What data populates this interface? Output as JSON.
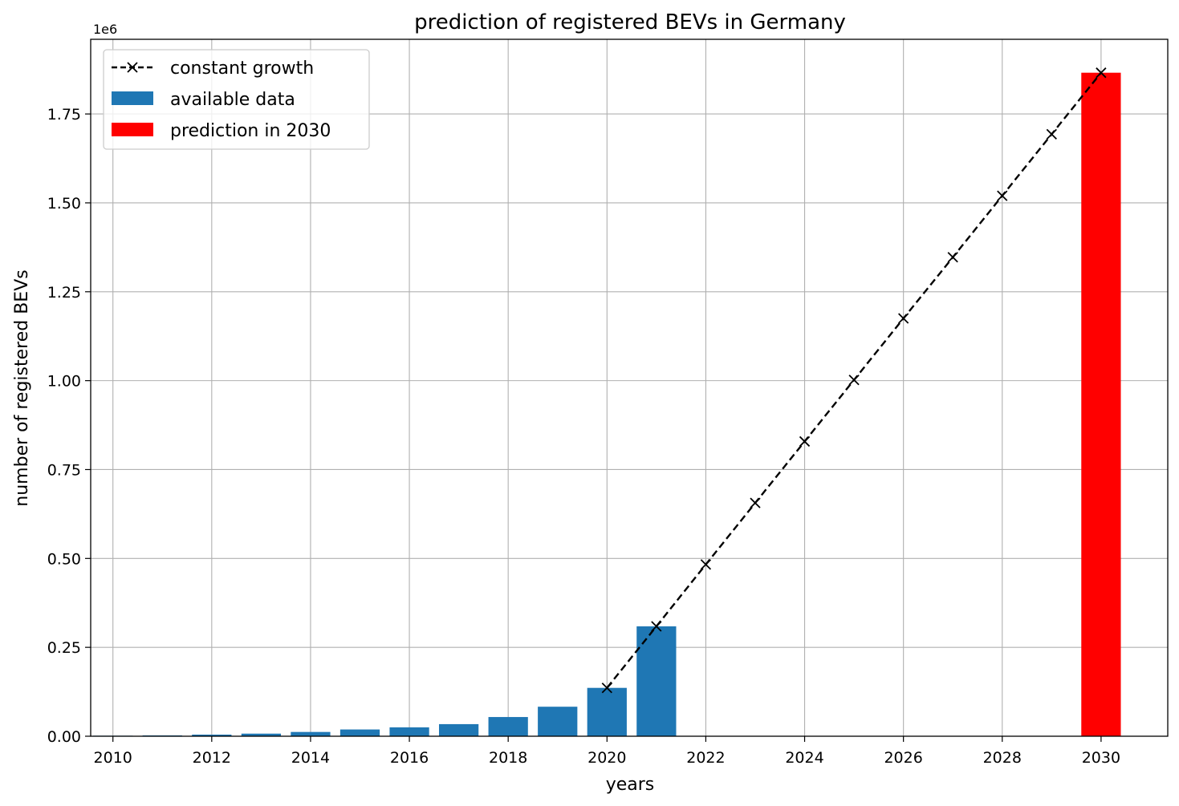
{
  "chart_data": {
    "type": "bar",
    "title": "prediction of registered BEVs in Germany",
    "xlabel": "years",
    "ylabel": "number of registered BEVs",
    "y_offset_text": "1e6",
    "xlim": [
      2009.55,
      2031.35
    ],
    "ylim": [
      0,
      1.96
    ],
    "x_ticks": [
      2010,
      2012,
      2014,
      2016,
      2018,
      2020,
      2022,
      2024,
      2026,
      2028,
      2030
    ],
    "x_tick_labels": [
      "2010",
      "2012",
      "2014",
      "2016",
      "2018",
      "2020",
      "2022",
      "2024",
      "2026",
      "2028",
      "2030"
    ],
    "y_ticks": [
      0,
      0.25,
      0.5,
      0.75,
      1.0,
      1.25,
      1.5,
      1.75
    ],
    "y_tick_labels": [
      "0.00",
      "0.25",
      "0.50",
      "0.75",
      "1.00",
      "1.25",
      "1.50",
      "1.75"
    ],
    "grid": true,
    "legend_position": "top-left",
    "series": [
      {
        "name": "constant growth",
        "kind": "line",
        "style": "dashed",
        "marker": "x",
        "color": "#000000",
        "x": [
          2020,
          2021,
          2022,
          2023,
          2024,
          2025,
          2026,
          2027,
          2028,
          2029,
          2030
        ],
        "values": [
          0.136,
          0.309,
          0.483,
          0.656,
          0.829,
          1.002,
          1.175,
          1.347,
          1.52,
          1.693,
          1.866
        ]
      },
      {
        "name": "available data",
        "kind": "bar",
        "color": "#1f77b4",
        "x": [
          2010,
          2011,
          2012,
          2013,
          2014,
          2015,
          2016,
          2017,
          2018,
          2019,
          2020,
          2021
        ],
        "values": [
          0.0015,
          0.0023,
          0.0045,
          0.0073,
          0.012,
          0.019,
          0.025,
          0.034,
          0.054,
          0.083,
          0.136,
          0.309
        ]
      },
      {
        "name": "prediction in 2030",
        "kind": "bar",
        "color": "#ff0000",
        "x": [
          2030
        ],
        "values": [
          1.866
        ]
      }
    ]
  }
}
